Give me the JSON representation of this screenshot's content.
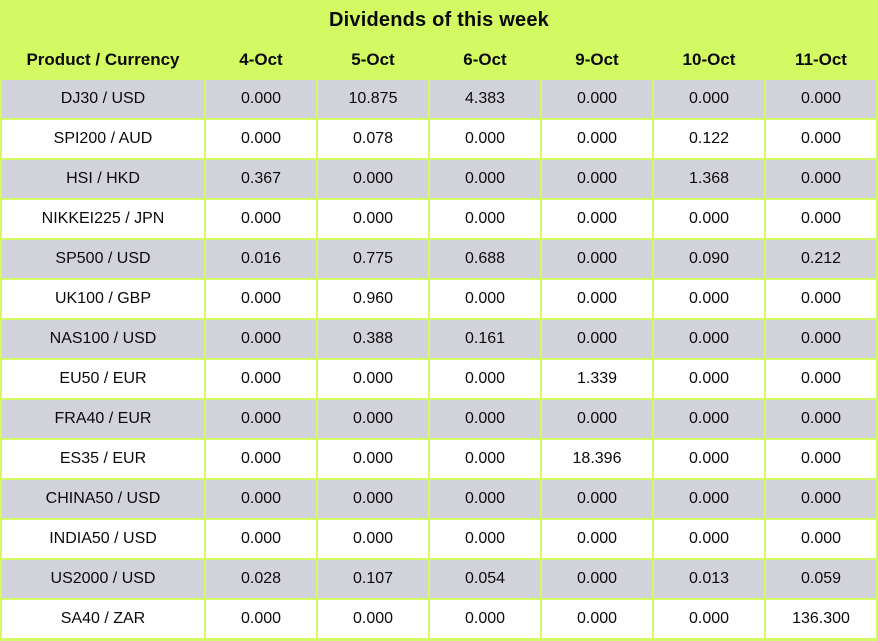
{
  "chart_data": {
    "type": "table",
    "title": "Dividends of this week",
    "columns": [
      "Product / Currency",
      "4-Oct",
      "5-Oct",
      "6-Oct",
      "9-Oct",
      "10-Oct",
      "11-Oct"
    ],
    "rows": [
      {
        "product": "DJ30 / USD",
        "values": [
          "0.000",
          "10.875",
          "4.383",
          "0.000",
          "0.000",
          "0.000"
        ]
      },
      {
        "product": "SPI200 / AUD",
        "values": [
          "0.000",
          "0.078",
          "0.000",
          "0.000",
          "0.122",
          "0.000"
        ]
      },
      {
        "product": "HSI / HKD",
        "values": [
          "0.367",
          "0.000",
          "0.000",
          "0.000",
          "1.368",
          "0.000"
        ]
      },
      {
        "product": "NIKKEI225 / JPN",
        "values": [
          "0.000",
          "0.000",
          "0.000",
          "0.000",
          "0.000",
          "0.000"
        ]
      },
      {
        "product": "SP500 / USD",
        "values": [
          "0.016",
          "0.775",
          "0.688",
          "0.000",
          "0.090",
          "0.212"
        ]
      },
      {
        "product": "UK100 / GBP",
        "values": [
          "0.000",
          "0.960",
          "0.000",
          "0.000",
          "0.000",
          "0.000"
        ]
      },
      {
        "product": "NAS100 / USD",
        "values": [
          "0.000",
          "0.388",
          "0.161",
          "0.000",
          "0.000",
          "0.000"
        ]
      },
      {
        "product": "EU50 / EUR",
        "values": [
          "0.000",
          "0.000",
          "0.000",
          "1.339",
          "0.000",
          "0.000"
        ]
      },
      {
        "product": "FRA40 / EUR",
        "values": [
          "0.000",
          "0.000",
          "0.000",
          "0.000",
          "0.000",
          "0.000"
        ]
      },
      {
        "product": "ES35 / EUR",
        "values": [
          "0.000",
          "0.000",
          "0.000",
          "18.396",
          "0.000",
          "0.000"
        ]
      },
      {
        "product": "CHINA50 / USD",
        "values": [
          "0.000",
          "0.000",
          "0.000",
          "0.000",
          "0.000",
          "0.000"
        ]
      },
      {
        "product": "INDIA50 / USD",
        "values": [
          "0.000",
          "0.000",
          "0.000",
          "0.000",
          "0.000",
          "0.000"
        ]
      },
      {
        "product": "US2000 / USD",
        "values": [
          "0.028",
          "0.107",
          "0.054",
          "0.000",
          "0.013",
          "0.059"
        ]
      },
      {
        "product": "SA40 / ZAR",
        "values": [
          "0.000",
          "0.000",
          "0.000",
          "0.000",
          "0.000",
          "136.300"
        ]
      }
    ],
    "layout": {
      "row_striping": "alternating, first data row shaded",
      "grid": "thin yellow-green lines between all cells"
    },
    "colors": {
      "background_green": "#d3fa62",
      "row_shaded": "#d2d2da",
      "row_plain": "#ffffff",
      "text": "#0a0a0a"
    }
  }
}
